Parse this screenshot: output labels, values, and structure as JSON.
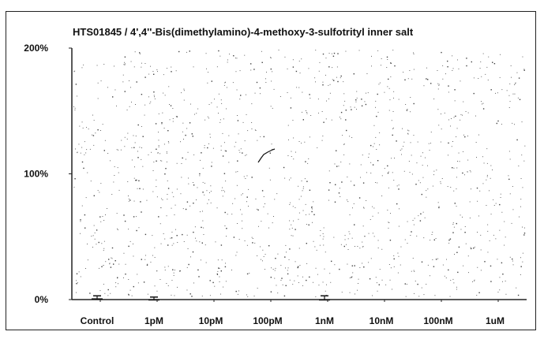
{
  "chart_data": {
    "type": "bar",
    "title": "HTS01845 / 4',4''-Bis(dimethylamino)-4-methoxy-3-sulfotrityl inner salt",
    "xlabel": "",
    "ylabel": "",
    "categories": [
      "Control",
      "1pM",
      "10pM",
      "100pM",
      "1nM",
      "10nM",
      "100nM",
      "1uM"
    ],
    "values": [
      1,
      0,
      null,
      null,
      0,
      null,
      null,
      null
    ],
    "error": [
      2,
      2,
      null,
      null,
      3,
      null,
      null,
      null
    ],
    "ylim": [
      0,
      200
    ],
    "y_ticks": [
      {
        "value": 200,
        "label": "200%"
      },
      {
        "value": 100,
        "label": "100%"
      },
      {
        "value": 0,
        "label": "0%"
      }
    ],
    "grid": false,
    "background": "speckled",
    "colors": {
      "axis": "#222222",
      "bar": "#111111",
      "speckle": "#444444"
    }
  }
}
